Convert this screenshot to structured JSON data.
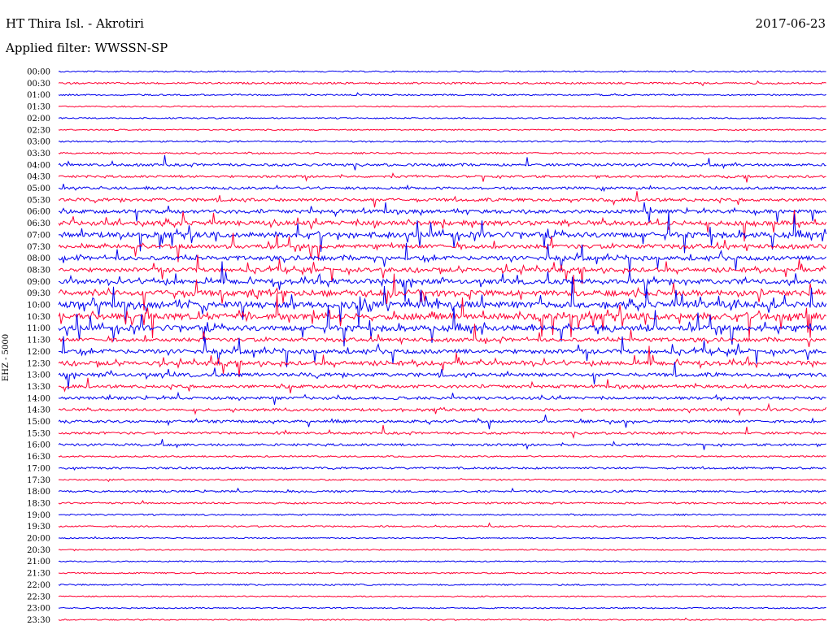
{
  "header": {
    "station": "HT Thira Isl. - Akrotiri",
    "filter": "Applied filter: WWSSN-SP",
    "date": "2017-06-23"
  },
  "chart_data": {
    "type": "line",
    "title": "HT Thira Isl. - Akrotiri",
    "subtitle": "Applied filter: WWSSN-SP",
    "ylabel": "EHZ - 5000",
    "colors": [
      "#0000ee",
      "#ff0033"
    ],
    "rows": [
      {
        "label": "00:00",
        "activity": 0.08
      },
      {
        "label": "00:30",
        "activity": 0.15
      },
      {
        "label": "01:00",
        "activity": 0.1
      },
      {
        "label": "01:30",
        "activity": 0.05
      },
      {
        "label": "02:00",
        "activity": 0.06
      },
      {
        "label": "02:30",
        "activity": 0.05
      },
      {
        "label": "03:00",
        "activity": 0.1
      },
      {
        "label": "03:30",
        "activity": 0.12
      },
      {
        "label": "04:00",
        "activity": 0.3
      },
      {
        "label": "04:30",
        "activity": 0.25
      },
      {
        "label": "05:00",
        "activity": 0.3
      },
      {
        "label": "05:30",
        "activity": 0.4
      },
      {
        "label": "06:00",
        "activity": 0.5
      },
      {
        "label": "06:30",
        "activity": 0.7
      },
      {
        "label": "07:00",
        "activity": 0.8
      },
      {
        "label": "07:30",
        "activity": 0.6
      },
      {
        "label": "08:00",
        "activity": 0.6
      },
      {
        "label": "08:30",
        "activity": 0.6
      },
      {
        "label": "09:00",
        "activity": 0.7
      },
      {
        "label": "09:30",
        "activity": 0.9
      },
      {
        "label": "10:00",
        "activity": 1.0
      },
      {
        "label": "10:30",
        "activity": 1.0
      },
      {
        "label": "11:00",
        "activity": 0.8
      },
      {
        "label": "11:30",
        "activity": 0.5
      },
      {
        "label": "12:00",
        "activity": 0.6
      },
      {
        "label": "12:30",
        "activity": 0.6
      },
      {
        "label": "13:00",
        "activity": 0.5
      },
      {
        "label": "13:30",
        "activity": 0.4
      },
      {
        "label": "14:00",
        "activity": 0.35
      },
      {
        "label": "14:30",
        "activity": 0.3
      },
      {
        "label": "15:00",
        "activity": 0.3
      },
      {
        "label": "15:30",
        "activity": 0.25
      },
      {
        "label": "16:00",
        "activity": 0.25
      },
      {
        "label": "16:30",
        "activity": 0.1
      },
      {
        "label": "17:00",
        "activity": 0.2
      },
      {
        "label": "17:30",
        "activity": 0.1
      },
      {
        "label": "18:00",
        "activity": 0.2
      },
      {
        "label": "18:30",
        "activity": 0.15
      },
      {
        "label": "19:00",
        "activity": 0.1
      },
      {
        "label": "19:30",
        "activity": 0.1
      },
      {
        "label": "20:00",
        "activity": 0.05
      },
      {
        "label": "20:30",
        "activity": 0.05
      },
      {
        "label": "21:00",
        "activity": 0.05
      },
      {
        "label": "21:30",
        "activity": 0.08
      },
      {
        "label": "22:00",
        "activity": 0.1
      },
      {
        "label": "22:30",
        "activity": 0.05
      },
      {
        "label": "23:00",
        "activity": 0.05
      },
      {
        "label": "23:30",
        "activity": 0.05
      }
    ],
    "grid": false,
    "legend": "none"
  }
}
